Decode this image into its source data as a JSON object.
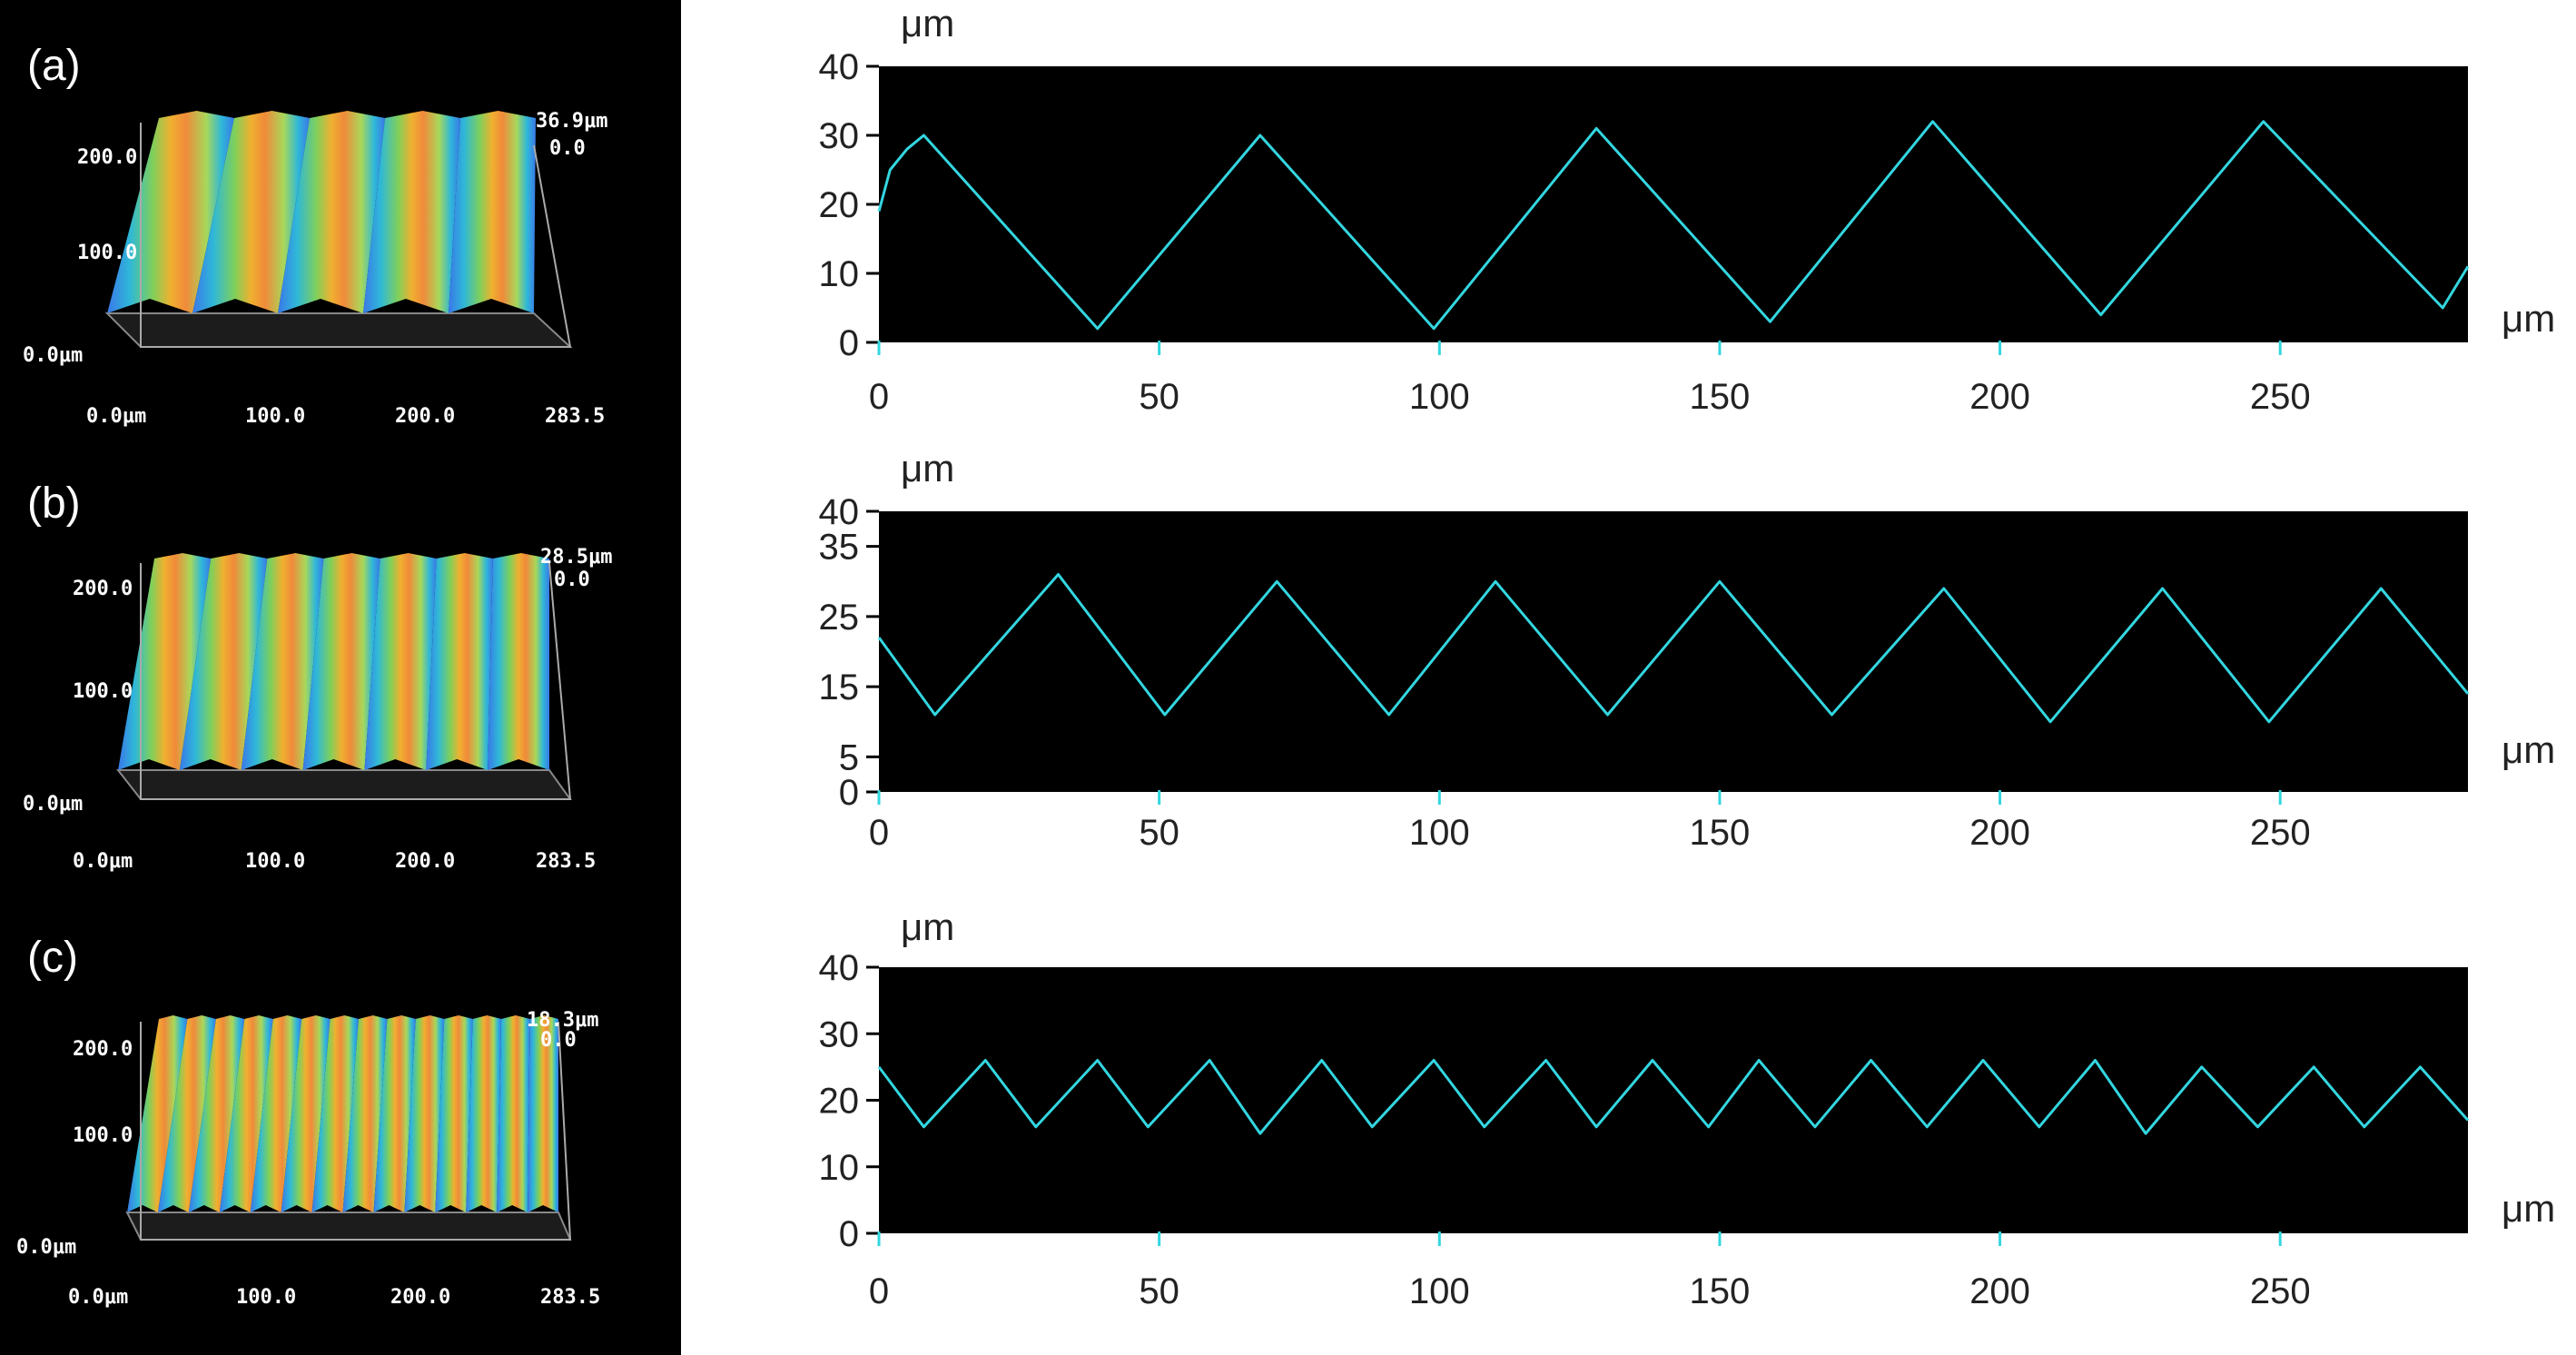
{
  "panels": [
    {
      "letter": "(a)",
      "surface": {
        "z_max_label": "36.9μm",
        "z_min_label": "0.0",
        "y_ticks": [
          "200.0",
          "100.0",
          "0.0μm"
        ],
        "x_ticks": [
          "0.0μm",
          "100.0",
          "200.0",
          "283.5"
        ],
        "ridges": 5
      }
    },
    {
      "letter": "(b)",
      "surface": {
        "z_max_label": "28.5μm",
        "z_min_label": "0.0",
        "y_ticks": [
          "200.0",
          "100.0",
          "0.0μm"
        ],
        "x_ticks": [
          "0.0μm",
          "100.0",
          "200.0",
          "283.5"
        ],
        "ridges": 7
      }
    },
    {
      "letter": "(c)",
      "surface": {
        "z_max_label": "18.3μm",
        "z_min_label": "0.0",
        "y_ticks": [
          "200.0",
          "100.0",
          "0.0μm"
        ],
        "x_ticks": [
          "0.0μm",
          "100.0",
          "200.0",
          "283.5"
        ],
        "ridges": 14
      }
    }
  ],
  "chart_data": [
    {
      "type": "line",
      "x_unit": "μm",
      "y_unit": "μm",
      "xlim": [
        0,
        283.5
      ],
      "ylim": [
        0,
        40
      ],
      "x_ticks": [
        0,
        50,
        100,
        150,
        200,
        250
      ],
      "y_ticks": [
        0,
        10,
        20,
        30,
        40
      ],
      "line_color": "#33d6e0",
      "background": "#000000",
      "series": [
        {
          "x": [
            0,
            2,
            5,
            8,
            39,
            68,
            99,
            128,
            159,
            188,
            218,
            247,
            279,
            283.5
          ],
          "y": [
            19,
            25,
            28,
            30,
            2,
            30,
            2,
            31,
            3,
            32,
            4,
            32,
            5,
            11
          ]
        }
      ]
    },
    {
      "type": "line",
      "x_unit": "μm",
      "y_unit": "μm",
      "xlim": [
        0,
        283.5
      ],
      "ylim": [
        0,
        40
      ],
      "x_ticks": [
        0,
        50,
        100,
        150,
        200,
        250
      ],
      "y_ticks": [
        0,
        5,
        15,
        25,
        35,
        40
      ],
      "line_color": "#33d6e0",
      "background": "#000000",
      "series": [
        {
          "x": [
            0,
            10,
            32,
            51,
            71,
            91,
            110,
            130,
            150,
            170,
            190,
            209,
            229,
            248,
            268,
            283.5
          ],
          "y": [
            22,
            11,
            31,
            11,
            30,
            11,
            30,
            11,
            30,
            11,
            29,
            10,
            29,
            10,
            29,
            14
          ]
        }
      ]
    },
    {
      "type": "line",
      "x_unit": "μm",
      "y_unit": "μm",
      "xlim": [
        0,
        283.5
      ],
      "ylim": [
        0,
        40
      ],
      "x_ticks": [
        0,
        50,
        100,
        150,
        200,
        250
      ],
      "y_ticks": [
        0,
        10,
        20,
        30,
        40
      ],
      "line_color": "#33d6e0",
      "background": "#000000",
      "series": [
        {
          "x": [
            0,
            8,
            19,
            28,
            39,
            48,
            59,
            68,
            79,
            88,
            99,
            108,
            119,
            128,
            138,
            148,
            157,
            167,
            177,
            187,
            197,
            207,
            217,
            226,
            236,
            246,
            256,
            265,
            275,
            283.5
          ],
          "y": [
            25,
            16,
            26,
            16,
            26,
            16,
            26,
            15,
            26,
            16,
            26,
            16,
            26,
            16,
            26,
            16,
            26,
            16,
            26,
            16,
            26,
            16,
            26,
            15,
            25,
            16,
            25,
            16,
            25,
            17
          ]
        }
      ]
    }
  ]
}
